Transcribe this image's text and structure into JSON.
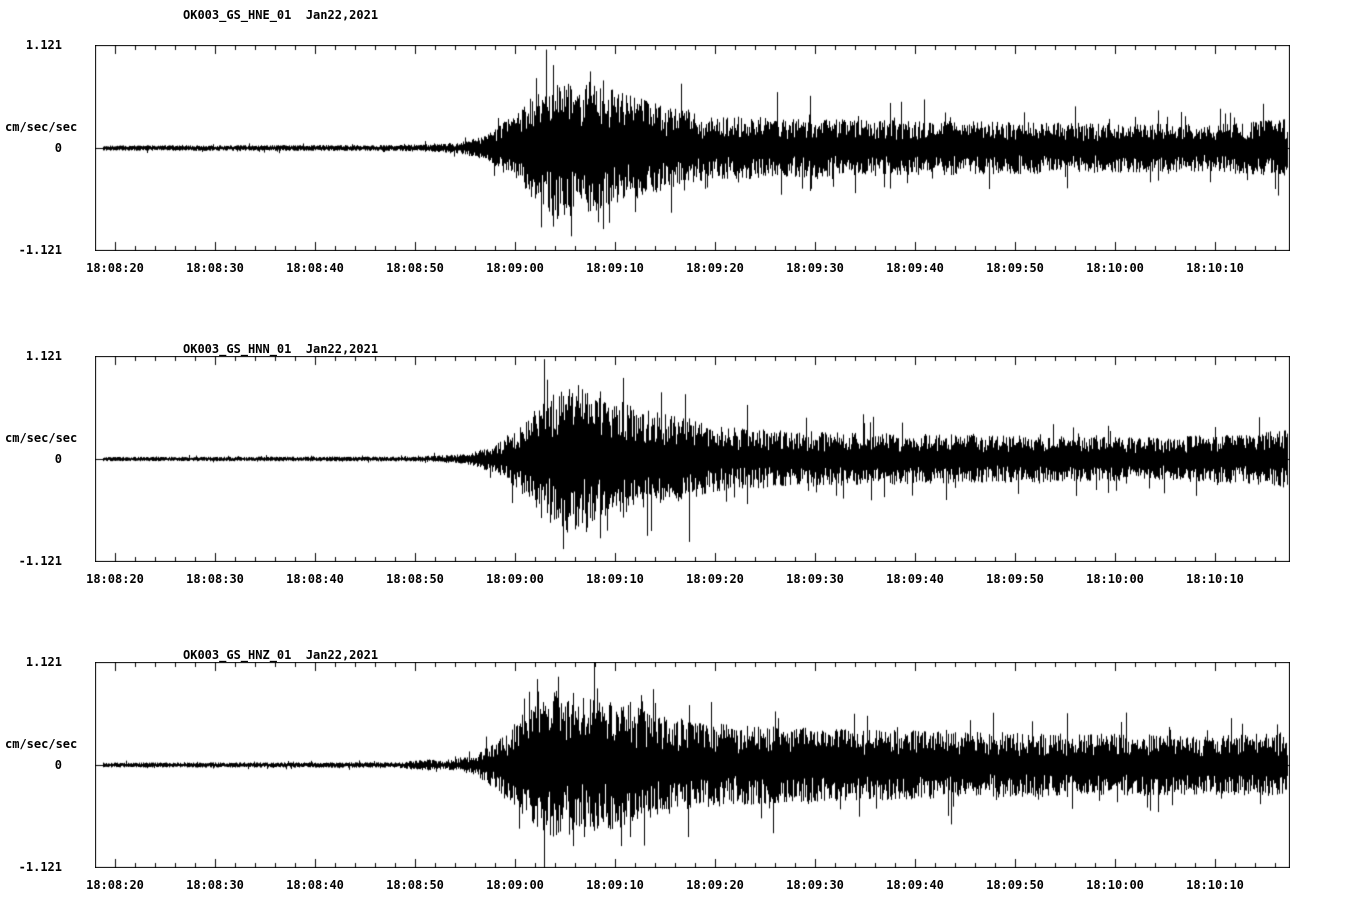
{
  "page": {
    "background": "#ffffff",
    "foreground": "#000000"
  },
  "chart_data": [
    {
      "type": "line",
      "subtype": "seismogram",
      "station_channel": "OK003_GS_HNE_01",
      "date": "Jan22,2021",
      "title": "OK003_GS_HNE_01  Jan22,2021",
      "description": "Strong-motion accelerogram: ambient noise until ~18:08:55, strong shaking onset peaking ~18:09:03-18:09:12, slowly decaying coda through end of record",
      "grid": false,
      "y_axis": {
        "units": "cm/sec/sec",
        "max_label": "1.121",
        "zero_label": "0",
        "min_label": "-1.121",
        "ylim": [
          -1.121,
          1.121
        ]
      },
      "x_axis": {
        "start_time": "18:08:18",
        "duration_sec": 119.5,
        "first_tick_offset_sec": 2,
        "tick_interval_sec": 10,
        "minor_tick_interval_sec": 2,
        "tick_labels": [
          "18:08:20",
          "18:08:30",
          "18:08:40",
          "18:08:50",
          "18:09:00",
          "18:09:10",
          "18:09:20",
          "18:09:30",
          "18:09:40",
          "18:09:50",
          "18:10:00",
          "18:10:10"
        ]
      },
      "trace": {
        "seed": 101,
        "envelope": [
          [
            0,
            0.028
          ],
          [
            30,
            0.03
          ],
          [
            36,
            0.05
          ],
          [
            39,
            0.12
          ],
          [
            42,
            0.35
          ],
          [
            44,
            0.55
          ],
          [
            46,
            0.72
          ],
          [
            48,
            0.7
          ],
          [
            51,
            0.62
          ],
          [
            54,
            0.52
          ],
          [
            57,
            0.42
          ],
          [
            61,
            0.33
          ],
          [
            70,
            0.3
          ],
          [
            80,
            0.28
          ],
          [
            95,
            0.26
          ],
          [
            110,
            0.24
          ],
          [
            116,
            0.27
          ],
          [
            119.5,
            0.3
          ]
        ],
        "spikes": [
          [
            45.8,
            0.92,
            0.55
          ],
          [
            47.6,
            0.65,
            0.98
          ],
          [
            49.5,
            0.85,
            0.7
          ],
          [
            50.8,
            0.75,
            0.9
          ],
          [
            68.2,
            0.62,
            0.3
          ],
          [
            79.5,
            0.5,
            0.45
          ]
        ]
      }
    },
    {
      "type": "line",
      "subtype": "seismogram",
      "station_channel": "OK003_GS_HNN_01",
      "date": "Jan22,2021",
      "title": "OK003_GS_HNN_01  Jan22,2021",
      "description": "Strong-motion accelerogram: quiet background, onset ~18:08:57, peak shaking ~18:09:04-18:09:12 with secondary bursts near 18:09:15, decaying coda through end of record",
      "grid": false,
      "y_axis": {
        "units": "cm/sec/sec",
        "max_label": "1.121",
        "zero_label": "0",
        "min_label": "-1.121",
        "ylim": [
          -1.121,
          1.121
        ]
      },
      "x_axis": {
        "start_time": "18:08:18",
        "duration_sec": 119.5,
        "first_tick_offset_sec": 2,
        "tick_interval_sec": 10,
        "minor_tick_interval_sec": 2,
        "tick_labels": [
          "18:08:20",
          "18:08:30",
          "18:08:40",
          "18:08:50",
          "18:09:00",
          "18:09:10",
          "18:09:20",
          "18:09:30",
          "18:09:40",
          "18:09:50",
          "18:10:00",
          "18:10:10"
        ]
      },
      "trace": {
        "seed": 202,
        "envelope": [
          [
            0,
            0.022
          ],
          [
            32,
            0.025
          ],
          [
            37,
            0.05
          ],
          [
            40,
            0.14
          ],
          [
            43,
            0.4
          ],
          [
            45,
            0.6
          ],
          [
            47,
            0.78
          ],
          [
            49,
            0.72
          ],
          [
            52,
            0.6
          ],
          [
            55,
            0.5
          ],
          [
            58,
            0.44
          ],
          [
            62,
            0.33
          ],
          [
            68,
            0.29
          ],
          [
            75,
            0.27
          ],
          [
            90,
            0.24
          ],
          [
            105,
            0.22
          ],
          [
            114,
            0.25
          ],
          [
            119.5,
            0.3
          ]
        ],
        "spikes": [
          [
            45.2,
            0.88,
            0.6
          ],
          [
            46.8,
            0.7,
            1.0
          ],
          [
            48.3,
            0.82,
            0.75
          ],
          [
            50.5,
            0.75,
            0.88
          ],
          [
            52.8,
            0.9,
            0.65
          ],
          [
            56.6,
            0.74,
            0.45
          ],
          [
            59.4,
            0.45,
            0.92
          ],
          [
            65.2,
            0.6,
            0.5
          ]
        ]
      }
    },
    {
      "type": "line",
      "subtype": "seismogram",
      "station_channel": "OK003_GS_HNZ_01",
      "date": "Jan22,2021",
      "title": "OK003_GS_HNZ_01  Jan22,2021",
      "description": "Strong-motion accelerogram (vertical): quiet background with small arrival ~18:08:52, main shaking ~18:09:00-18:09:12 with one clipped downward spike, dense slowly decaying coda through end of record",
      "grid": false,
      "y_axis": {
        "units": "cm/sec/sec",
        "max_label": "1.121",
        "zero_label": "0",
        "min_label": "-1.121",
        "ylim": [
          -1.121,
          1.121
        ]
      },
      "x_axis": {
        "start_time": "18:08:18",
        "duration_sec": 119.5,
        "first_tick_offset_sec": 2,
        "tick_interval_sec": 10,
        "minor_tick_interval_sec": 2,
        "tick_labels": [
          "18:08:20",
          "18:08:30",
          "18:08:40",
          "18:08:50",
          "18:09:00",
          "18:09:10",
          "18:09:20",
          "18:09:30",
          "18:09:40",
          "18:09:50",
          "18:10:00",
          "18:10:10"
        ]
      },
      "trace": {
        "seed": 303,
        "envelope": [
          [
            0,
            0.025
          ],
          [
            30,
            0.028
          ],
          [
            33.5,
            0.06
          ],
          [
            35,
            0.04
          ],
          [
            38,
            0.1
          ],
          [
            41,
            0.32
          ],
          [
            43.5,
            0.6
          ],
          [
            46,
            0.75
          ],
          [
            49,
            0.7
          ],
          [
            53,
            0.62
          ],
          [
            57,
            0.5
          ],
          [
            62,
            0.42
          ],
          [
            70,
            0.38
          ],
          [
            85,
            0.34
          ],
          [
            100,
            0.32
          ],
          [
            112,
            0.3
          ],
          [
            119.5,
            0.34
          ]
        ],
        "spikes": [
          [
            44.9,
            0.6,
            1.15
          ],
          [
            46.3,
            0.98,
            0.75
          ],
          [
            47.8,
            0.8,
            0.9
          ],
          [
            50.2,
            0.85,
            0.65
          ],
          [
            53.5,
            0.7,
            0.8
          ],
          [
            89.8,
            0.58,
            0.35
          ],
          [
            113.6,
            0.52,
            0.3
          ]
        ]
      }
    }
  ]
}
